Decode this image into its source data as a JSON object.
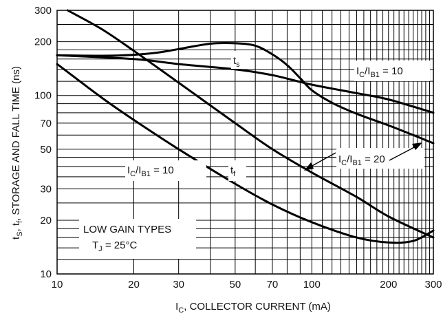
{
  "chart_data": {
    "type": "line",
    "xscale": "log",
    "yscale": "log",
    "xlim": [
      10,
      300
    ],
    "ylim": [
      10,
      300
    ],
    "grid": true,
    "xlabel": {
      "main": "I",
      "sub": "C",
      "rest": ", COLLECTOR CURRENT (mA)"
    },
    "ylabel": {
      "p1": "t",
      "s1": "S",
      "p2": ", t",
      "s2": "f",
      "p3": ", STORAGE AND FALL TIME (ns)"
    },
    "xticks": [
      {
        "value": 10,
        "label": "10"
      },
      {
        "value": 20,
        "label": "20"
      },
      {
        "value": 30,
        "label": "30"
      },
      {
        "value": 50,
        "label": "50"
      },
      {
        "value": 70,
        "label": "70"
      },
      {
        "value": 100,
        "label": "100"
      },
      {
        "value": 200,
        "label": "200"
      },
      {
        "value": 300,
        "label": "300"
      }
    ],
    "yticks": [
      {
        "value": 10,
        "label": "10"
      },
      {
        "value": 20,
        "label": "20"
      },
      {
        "value": 30,
        "label": "30"
      },
      {
        "value": 50,
        "label": "50"
      },
      {
        "value": 70,
        "label": "70"
      },
      {
        "value": 100,
        "label": "100"
      },
      {
        "value": 200,
        "label": "200"
      },
      {
        "value": 300,
        "label": "300"
      }
    ],
    "series": [
      {
        "x": [
          10,
          15,
          20,
          25,
          30,
          40,
          50,
          60,
          70,
          80,
          90,
          100,
          120,
          150,
          200,
          250,
          300
        ],
        "y": [
          168,
          167,
          169,
          174,
          182,
          195,
          196,
          190,
          170,
          148,
          125,
          107,
          91,
          79,
          68,
          60,
          54
        ]
      },
      {
        "x": [
          10,
          20,
          30,
          50,
          70,
          100,
          150,
          200,
          300
        ],
        "y": [
          168,
          160,
          150,
          140,
          130,
          115,
          103,
          95,
          80
        ]
      },
      {
        "x": [
          11,
          15,
          20,
          30,
          50,
          70,
          100,
          150,
          200,
          300
        ],
        "y": [
          300,
          235,
          178,
          118,
          70,
          50,
          37,
          27,
          21,
          16
        ]
      },
      {
        "x": [
          10,
          15,
          20,
          30,
          50,
          70,
          100,
          150,
          200,
          250,
          300
        ],
        "y": [
          150,
          97,
          73,
          50,
          32,
          24.5,
          19.5,
          16,
          15,
          15.3,
          17.5
        ]
      }
    ],
    "annotations": {
      "ts": {
        "main": "t",
        "sub": "s"
      },
      "tf": {
        "main": "t",
        "sub": "f"
      },
      "ratio_top": {
        "a": "I",
        "b": "C",
        "c": "/I",
        "d": "B1",
        "e": " = 10"
      },
      "ratio_mid": {
        "a": "I",
        "b": "C",
        "c": "/I",
        "d": "B1",
        "e": " = 20"
      },
      "ratio_left": {
        "a": "I",
        "b": "C",
        "c": "/I",
        "d": "B1",
        "e": " = 10"
      },
      "gain_line1": "LOW GAIN TYPES",
      "tj": {
        "a": "T",
        "b": "J",
        "c": " = 25°C"
      }
    }
  }
}
